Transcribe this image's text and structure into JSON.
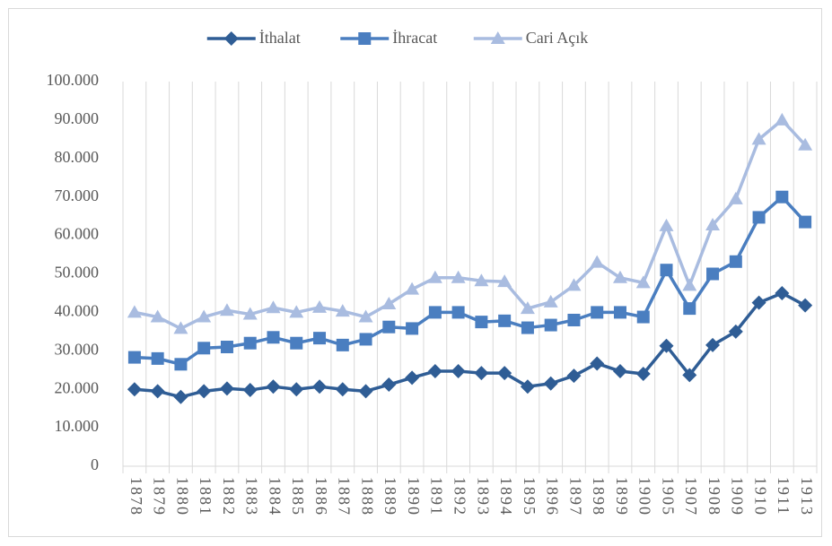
{
  "chart_data": {
    "type": "line",
    "categories": [
      "1878",
      "1879",
      "1880",
      "1881",
      "1882",
      "1883",
      "1884",
      "1885",
      "1886",
      "1887",
      "1888",
      "1889",
      "1890",
      "1891",
      "1892",
      "1893",
      "1894",
      "1895",
      "1896",
      "1897",
      "1898",
      "1899",
      "1900",
      "1905",
      "1907",
      "1908",
      "1909",
      "1910",
      "1911",
      "1913"
    ],
    "series": [
      {
        "name": "İthalat",
        "color": "#2f5d95",
        "marker": "diamond",
        "values": [
          20000,
          19500,
          18000,
          19500,
          20200,
          19800,
          20700,
          20000,
          20700,
          20000,
          19500,
          21200,
          23000,
          24700,
          24700,
          24200,
          24200,
          20700,
          21500,
          23500,
          26700,
          24700,
          24000,
          31300,
          23700,
          31500,
          35000,
          42500,
          45000,
          41800
        ]
      },
      {
        "name": "İhracat",
        "color": "#4a7ec0",
        "marker": "square",
        "values": [
          28300,
          28000,
          26500,
          30700,
          31000,
          32000,
          33500,
          32000,
          33300,
          31500,
          33000,
          36200,
          35800,
          40000,
          40000,
          37500,
          37800,
          36000,
          36700,
          38000,
          40000,
          40000,
          38800,
          51000,
          41000,
          50000,
          53200,
          64700,
          70000,
          63500
        ]
      },
      {
        "name": "Cari Açık",
        "color": "#a9bce0",
        "marker": "triangle",
        "values": [
          40000,
          38800,
          35800,
          38800,
          40500,
          39500,
          41200,
          40000,
          41300,
          40300,
          38800,
          42200,
          46000,
          49000,
          49000,
          48200,
          48000,
          41000,
          42700,
          47000,
          53000,
          49000,
          47700,
          62500,
          47000,
          62700,
          69500,
          85000,
          90000,
          83500
        ]
      }
    ],
    "ylim": [
      0,
      100000
    ],
    "yticks": [
      0,
      {
        "value": 10000,
        "label": "10.000"
      },
      {
        "value": 20000,
        "label": "20.000"
      },
      {
        "value": 30000,
        "label": "30.000"
      },
      {
        "value": 40000,
        "label": "40.000"
      },
      {
        "value": 50000,
        "label": "50.000"
      },
      {
        "value": 60000,
        "label": "60.000"
      },
      {
        "value": 70000,
        "label": "70.000"
      },
      {
        "value": 80000,
        "label": "80.000"
      },
      {
        "value": 90000,
        "label": "90.000"
      },
      {
        "value": 100000,
        "label": "100.000"
      }
    ],
    "grid": "vertical",
    "legend": "top"
  }
}
